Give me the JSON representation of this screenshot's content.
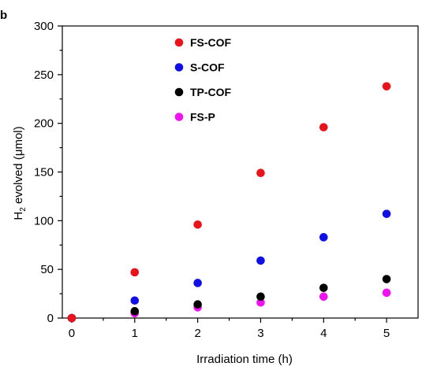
{
  "chart_data": {
    "type": "scatter",
    "panel_label": "b",
    "xlabel": "Irradiation time (h)",
    "ylabel": {
      "prefix": "H",
      "subscript": "2",
      "suffix": " evolved (μmol)"
    },
    "x_ticks": [
      0,
      1,
      2,
      3,
      4,
      5
    ],
    "y_ticks": [
      0,
      50,
      100,
      150,
      200,
      250,
      300
    ],
    "xlim": [
      -0.15,
      5.5
    ],
    "ylim": [
      0,
      300
    ],
    "grid": false,
    "legend_position": "top-center",
    "x": [
      0,
      1,
      2,
      3,
      4,
      5
    ],
    "series": [
      {
        "name": "FS-COF",
        "color": "#e8131b",
        "values": [
          0,
          47,
          96,
          149,
          196,
          238
        ]
      },
      {
        "name": "S-COF",
        "color": "#1010e6",
        "values": [
          0,
          18,
          36,
          59,
          83,
          107
        ]
      },
      {
        "name": "TP-COF",
        "color": "#000000",
        "values": [
          0,
          7,
          14,
          22,
          31,
          40
        ]
      },
      {
        "name": "FS-P",
        "color": "#f012f0",
        "values": [
          0,
          5,
          11,
          16,
          22,
          26
        ]
      }
    ]
  }
}
